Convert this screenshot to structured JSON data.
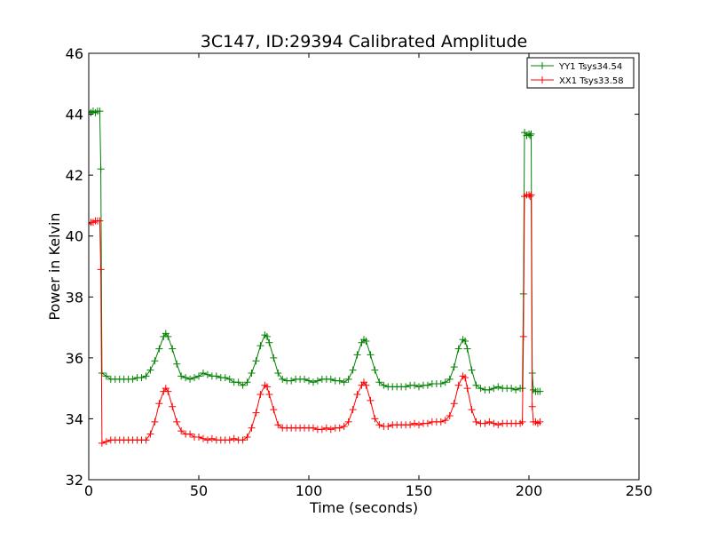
{
  "chart_data": {
    "type": "line",
    "title": "3C147, ID:29394 Calibrated Amplitude",
    "xlabel": "Time (seconds)",
    "ylabel": "Power in Kelvin",
    "xlim": [
      0,
      250
    ],
    "ylim": [
      32,
      46
    ],
    "xticks": [
      0,
      50,
      100,
      150,
      200,
      250
    ],
    "yticks": [
      32,
      34,
      36,
      38,
      40,
      42,
      44,
      46
    ],
    "grid": false,
    "legend_position": "top-right",
    "marker": "+",
    "series": [
      {
        "name": "YY1 Tsys34.54",
        "color": "#008000",
        "points": [
          [
            0,
            44.1
          ],
          [
            1,
            44.05
          ],
          [
            2,
            44.1
          ],
          [
            3,
            44.05
          ],
          [
            4,
            44.1
          ],
          [
            5,
            44.1
          ],
          [
            5.5,
            42.2
          ],
          [
            6,
            35.5
          ],
          [
            8,
            35.4
          ],
          [
            10,
            35.3
          ],
          [
            12,
            35.3
          ],
          [
            14,
            35.3
          ],
          [
            16,
            35.3
          ],
          [
            18,
            35.3
          ],
          [
            20,
            35.3
          ],
          [
            22,
            35.35
          ],
          [
            24,
            35.35
          ],
          [
            26,
            35.4
          ],
          [
            28,
            35.6
          ],
          [
            30,
            35.9
          ],
          [
            32,
            36.3
          ],
          [
            34,
            36.7
          ],
          [
            35,
            36.8
          ],
          [
            36,
            36.7
          ],
          [
            38,
            36.3
          ],
          [
            40,
            35.8
          ],
          [
            42,
            35.4
          ],
          [
            44,
            35.35
          ],
          [
            46,
            35.3
          ],
          [
            48,
            35.35
          ],
          [
            50,
            35.4
          ],
          [
            52,
            35.5
          ],
          [
            54,
            35.45
          ],
          [
            56,
            35.4
          ],
          [
            58,
            35.4
          ],
          [
            60,
            35.35
          ],
          [
            62,
            35.35
          ],
          [
            64,
            35.3
          ],
          [
            66,
            35.2
          ],
          [
            68,
            35.2
          ],
          [
            70,
            35.1
          ],
          [
            72,
            35.2
          ],
          [
            74,
            35.5
          ],
          [
            76,
            35.9
          ],
          [
            78,
            36.4
          ],
          [
            80,
            36.75
          ],
          [
            81,
            36.7
          ],
          [
            82,
            36.5
          ],
          [
            84,
            36.0
          ],
          [
            86,
            35.5
          ],
          [
            88,
            35.3
          ],
          [
            90,
            35.25
          ],
          [
            92,
            35.25
          ],
          [
            94,
            35.3
          ],
          [
            96,
            35.3
          ],
          [
            98,
            35.3
          ],
          [
            100,
            35.25
          ],
          [
            102,
            35.2
          ],
          [
            104,
            35.25
          ],
          [
            106,
            35.3
          ],
          [
            108,
            35.3
          ],
          [
            110,
            35.3
          ],
          [
            112,
            35.25
          ],
          [
            114,
            35.25
          ],
          [
            116,
            35.2
          ],
          [
            118,
            35.3
          ],
          [
            120,
            35.6
          ],
          [
            122,
            36.1
          ],
          [
            124,
            36.5
          ],
          [
            125,
            36.6
          ],
          [
            126,
            36.55
          ],
          [
            128,
            36.1
          ],
          [
            130,
            35.6
          ],
          [
            132,
            35.2
          ],
          [
            134,
            35.1
          ],
          [
            136,
            35.05
          ],
          [
            138,
            35.05
          ],
          [
            140,
            35.05
          ],
          [
            142,
            35.05
          ],
          [
            144,
            35.05
          ],
          [
            146,
            35.1
          ],
          [
            148,
            35.1
          ],
          [
            150,
            35.05
          ],
          [
            152,
            35.1
          ],
          [
            154,
            35.1
          ],
          [
            156,
            35.15
          ],
          [
            158,
            35.15
          ],
          [
            160,
            35.15
          ],
          [
            162,
            35.2
          ],
          [
            164,
            35.3
          ],
          [
            166,
            35.7
          ],
          [
            168,
            36.3
          ],
          [
            170,
            36.6
          ],
          [
            171,
            36.55
          ],
          [
            172,
            36.3
          ],
          [
            174,
            35.6
          ],
          [
            176,
            35.1
          ],
          [
            178,
            35.0
          ],
          [
            180,
            34.95
          ],
          [
            182,
            34.95
          ],
          [
            184,
            35.0
          ],
          [
            186,
            35.05
          ],
          [
            188,
            35.0
          ],
          [
            190,
            35.0
          ],
          [
            192,
            35.0
          ],
          [
            194,
            34.95
          ],
          [
            196,
            35.0
          ],
          [
            197,
            35.0
          ],
          [
            197.5,
            38.1
          ],
          [
            198,
            43.4
          ],
          [
            199,
            43.3
          ],
          [
            200,
            43.35
          ],
          [
            200.5,
            43.3
          ],
          [
            201,
            43.35
          ],
          [
            201.5,
            35.5
          ],
          [
            202,
            34.95
          ],
          [
            203,
            34.9
          ],
          [
            204,
            34.9
          ],
          [
            205,
            34.9
          ]
        ]
      },
      {
        "name": "XX1 Tsys33.58",
        "color": "#ff0000",
        "points": [
          [
            0,
            40.4
          ],
          [
            1,
            40.45
          ],
          [
            2,
            40.45
          ],
          [
            3,
            40.5
          ],
          [
            4,
            40.5
          ],
          [
            5,
            40.5
          ],
          [
            5.5,
            38.9
          ],
          [
            6,
            33.2
          ],
          [
            8,
            33.25
          ],
          [
            10,
            33.3
          ],
          [
            12,
            33.3
          ],
          [
            14,
            33.3
          ],
          [
            16,
            33.3
          ],
          [
            18,
            33.3
          ],
          [
            20,
            33.3
          ],
          [
            22,
            33.3
          ],
          [
            24,
            33.3
          ],
          [
            26,
            33.3
          ],
          [
            28,
            33.5
          ],
          [
            30,
            33.9
          ],
          [
            32,
            34.5
          ],
          [
            34,
            34.9
          ],
          [
            35,
            35.0
          ],
          [
            36,
            34.9
          ],
          [
            38,
            34.4
          ],
          [
            40,
            33.9
          ],
          [
            42,
            33.6
          ],
          [
            44,
            33.5
          ],
          [
            46,
            33.5
          ],
          [
            48,
            33.4
          ],
          [
            50,
            33.4
          ],
          [
            52,
            33.35
          ],
          [
            54,
            33.3
          ],
          [
            56,
            33.35
          ],
          [
            58,
            33.3
          ],
          [
            60,
            33.3
          ],
          [
            62,
            33.3
          ],
          [
            64,
            33.3
          ],
          [
            66,
            33.35
          ],
          [
            68,
            33.3
          ],
          [
            70,
            33.3
          ],
          [
            72,
            33.4
          ],
          [
            74,
            33.7
          ],
          [
            76,
            34.2
          ],
          [
            78,
            34.8
          ],
          [
            80,
            35.1
          ],
          [
            81,
            35.05
          ],
          [
            82,
            34.8
          ],
          [
            84,
            34.3
          ],
          [
            86,
            33.8
          ],
          [
            88,
            33.7
          ],
          [
            90,
            33.7
          ],
          [
            92,
            33.7
          ],
          [
            94,
            33.7
          ],
          [
            96,
            33.7
          ],
          [
            98,
            33.7
          ],
          [
            100,
            33.7
          ],
          [
            102,
            33.7
          ],
          [
            104,
            33.65
          ],
          [
            106,
            33.65
          ],
          [
            108,
            33.7
          ],
          [
            110,
            33.65
          ],
          [
            112,
            33.7
          ],
          [
            114,
            33.7
          ],
          [
            116,
            33.75
          ],
          [
            118,
            33.9
          ],
          [
            120,
            34.3
          ],
          [
            122,
            34.8
          ],
          [
            124,
            35.1
          ],
          [
            125,
            35.2
          ],
          [
            126,
            35.1
          ],
          [
            128,
            34.6
          ],
          [
            130,
            34.0
          ],
          [
            132,
            33.8
          ],
          [
            134,
            33.75
          ],
          [
            136,
            33.75
          ],
          [
            138,
            33.8
          ],
          [
            140,
            33.8
          ],
          [
            142,
            33.8
          ],
          [
            144,
            33.8
          ],
          [
            146,
            33.8
          ],
          [
            148,
            33.85
          ],
          [
            150,
            33.8
          ],
          [
            152,
            33.85
          ],
          [
            154,
            33.85
          ],
          [
            156,
            33.9
          ],
          [
            158,
            33.9
          ],
          [
            160,
            33.9
          ],
          [
            162,
            33.95
          ],
          [
            164,
            34.1
          ],
          [
            166,
            34.5
          ],
          [
            168,
            35.1
          ],
          [
            170,
            35.4
          ],
          [
            171,
            35.35
          ],
          [
            172,
            35.0
          ],
          [
            174,
            34.3
          ],
          [
            176,
            33.9
          ],
          [
            178,
            33.85
          ],
          [
            180,
            33.85
          ],
          [
            182,
            33.9
          ],
          [
            184,
            33.85
          ],
          [
            186,
            33.8
          ],
          [
            188,
            33.85
          ],
          [
            190,
            33.85
          ],
          [
            192,
            33.85
          ],
          [
            194,
            33.85
          ],
          [
            196,
            33.85
          ],
          [
            197,
            33.9
          ],
          [
            197.5,
            36.7
          ],
          [
            198,
            41.3
          ],
          [
            199,
            41.35
          ],
          [
            200,
            41.35
          ],
          [
            200.5,
            41.3
          ],
          [
            201,
            41.35
          ],
          [
            201.5,
            34.4
          ],
          [
            202,
            33.9
          ],
          [
            203,
            33.9
          ],
          [
            204,
            33.85
          ],
          [
            205,
            33.9
          ]
        ]
      }
    ]
  }
}
